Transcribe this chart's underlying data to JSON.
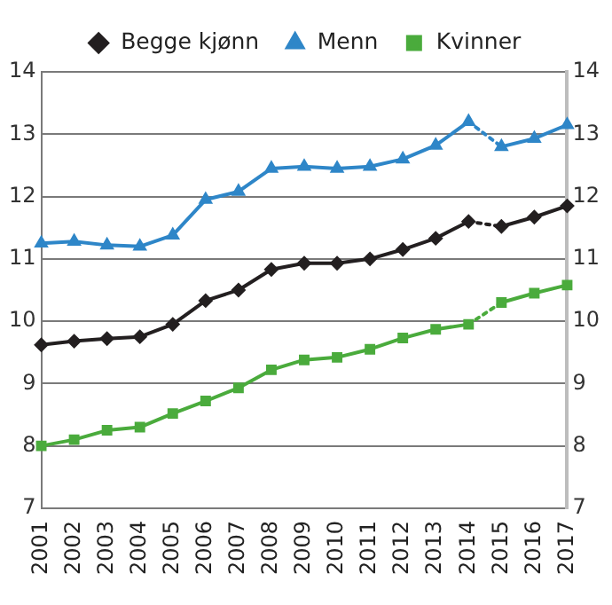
{
  "chart_data": {
    "type": "line",
    "categories": [
      "2001",
      "2002",
      "2003",
      "2004",
      "2005",
      "2006",
      "2007",
      "2008",
      "2009",
      "2010",
      "2011",
      "2012",
      "2013",
      "2014",
      "2015",
      "2016",
      "2017"
    ],
    "series": [
      {
        "name": "Begge kjønn",
        "color": "#231f20",
        "marker": "diamond",
        "line_style": "solid",
        "values": [
          9.62,
          9.68,
          9.72,
          9.75,
          9.95,
          10.33,
          10.5,
          10.83,
          10.93,
          10.93,
          11.0,
          11.15,
          11.33,
          11.6,
          null,
          null,
          null
        ]
      },
      {
        "color": "#231f20",
        "line_style": "dotted",
        "values": [
          null,
          null,
          null,
          null,
          null,
          null,
          null,
          null,
          null,
          null,
          null,
          null,
          null,
          11.6,
          11.52,
          null,
          null
        ]
      },
      {
        "color": "#231f20",
        "marker": "diamond",
        "line_style": "solid",
        "values": [
          null,
          null,
          null,
          null,
          null,
          null,
          null,
          null,
          null,
          null,
          null,
          null,
          null,
          null,
          11.52,
          11.67,
          11.85
        ]
      },
      {
        "name": "Menn",
        "color": "#2e86c8",
        "marker": "triangle",
        "line_style": "solid",
        "values": [
          11.25,
          11.28,
          11.22,
          11.2,
          11.38,
          11.95,
          12.08,
          12.45,
          12.48,
          12.45,
          12.48,
          12.6,
          12.82,
          13.2,
          null,
          null,
          null
        ]
      },
      {
        "color": "#2e86c8",
        "line_style": "dotted",
        "values": [
          null,
          null,
          null,
          null,
          null,
          null,
          null,
          null,
          null,
          null,
          null,
          null,
          null,
          13.2,
          12.8,
          null,
          null
        ]
      },
      {
        "color": "#2e86c8",
        "marker": "triangle",
        "line_style": "solid",
        "values": [
          null,
          null,
          null,
          null,
          null,
          null,
          null,
          null,
          null,
          null,
          null,
          null,
          null,
          null,
          12.8,
          12.93,
          13.15
        ]
      },
      {
        "name": "Kvinner",
        "color": "#4aab3c",
        "marker": "square",
        "line_style": "solid",
        "values": [
          8.0,
          8.1,
          8.25,
          8.3,
          8.52,
          8.72,
          8.93,
          9.22,
          9.38,
          9.42,
          9.55,
          9.73,
          9.87,
          9.95,
          null,
          null,
          null
        ]
      },
      {
        "color": "#4aab3c",
        "line_style": "dotted",
        "values": [
          null,
          null,
          null,
          null,
          null,
          null,
          null,
          null,
          null,
          null,
          null,
          null,
          null,
          9.95,
          10.3,
          null,
          null
        ]
      },
      {
        "color": "#4aab3c",
        "marker": "square",
        "line_style": "solid",
        "values": [
          null,
          null,
          null,
          null,
          null,
          null,
          null,
          null,
          null,
          null,
          null,
          null,
          null,
          null,
          10.3,
          10.45,
          10.58
        ]
      }
    ],
    "ylim": [
      7,
      14
    ],
    "yticks": [
      7,
      8,
      9,
      10,
      11,
      12,
      13,
      14
    ],
    "y2lim": [
      7,
      14
    ],
    "y2ticks": [
      7,
      8,
      9,
      10,
      11,
      12,
      13,
      14
    ],
    "grid": "y",
    "legend": "top"
  }
}
